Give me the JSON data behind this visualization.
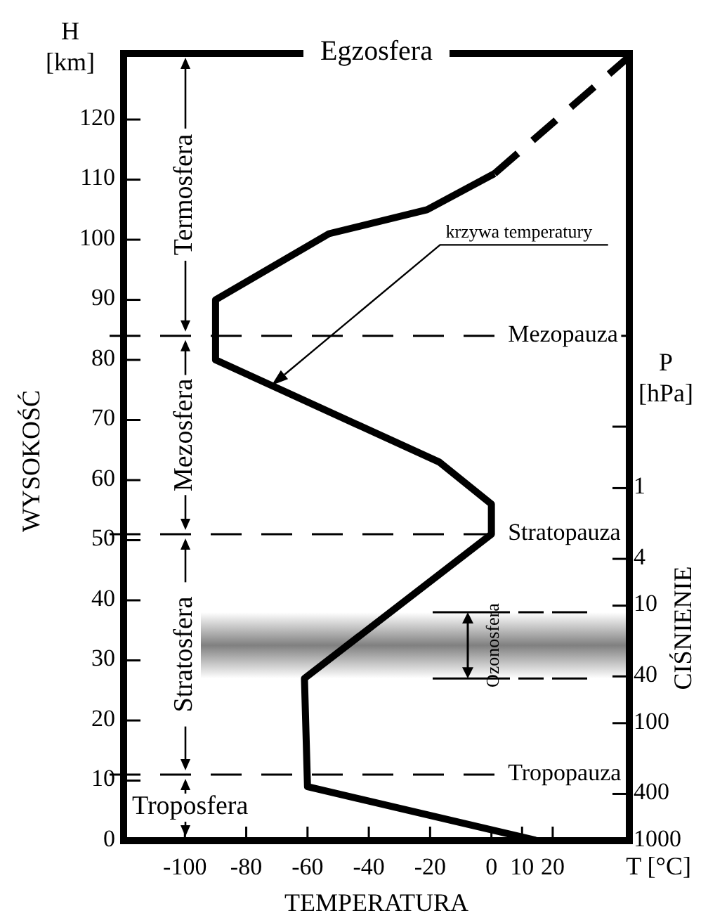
{
  "chart_data": {
    "type": "line",
    "xlabel": "TEMPERATURA",
    "ylabel": "WYSOKOŚĆ",
    "y2label": "CIŚNIENIE",
    "annotations": [
      "H [km]",
      "P [hPa]",
      "T [°C]",
      "Egzosfera",
      "Termosfera",
      "Mezosfera",
      "Stratosfera",
      "Troposfera",
      "krzywa temperatury"
    ],
    "series": [
      {
        "x": [
          15,
          -60,
          -61,
          0,
          0,
          -17,
          -90,
          -90,
          -53,
          -21,
          1
        ],
        "values": [
          0,
          9,
          27,
          51,
          56,
          63,
          80,
          90,
          101,
          105,
          111
        ],
        "color": "#000000",
        "line_style": "solid"
      },
      {
        "x": [
          1,
          45
        ],
        "values": [
          111,
          130.5
        ],
        "color": "#000000",
        "line_style": "dashed"
      }
    ],
    "xlim": [
      -120,
      45
    ],
    "xticks": [
      -100,
      -80,
      -60,
      -40,
      -20,
      0,
      10,
      20
    ],
    "ylim": [
      0,
      131
    ],
    "yticks": [
      0,
      10,
      20,
      30,
      40,
      50,
      60,
      70,
      80,
      90,
      100,
      110,
      120
    ],
    "y2lim": [
      1000,
      0.0002
    ],
    "y2ticks": [
      1000,
      400,
      100,
      40,
      10,
      4,
      1,
      {
        "value": 0.3,
        "label": null
      }
    ],
    "log": "y2",
    "ref_lines": [
      {
        "axis": "y",
        "value": 84,
        "label": "Mezopauza",
        "line_style": "dashed"
      },
      {
        "axis": "y",
        "value": 51,
        "label": "Stratopauza",
        "line_style": "dashed"
      },
      {
        "axis": "y",
        "value": 11,
        "label": "Tropopauza",
        "line_style": "dashed"
      }
    ],
    "bands": [
      {
        "axis": "y",
        "from": 27,
        "to": 38,
        "label": "Ozonosfera",
        "color": "#808080"
      }
    ],
    "grid": false
  }
}
